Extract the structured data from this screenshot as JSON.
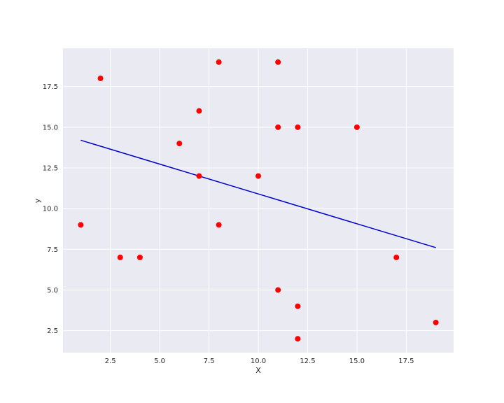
{
  "chart_data": {
    "type": "scatter",
    "title": "",
    "xlabel": "X",
    "ylabel": "y",
    "xlim": [
      0.1,
      19.9
    ],
    "ylim": [
      1.15,
      19.85
    ],
    "xticks": [
      2.5,
      5.0,
      7.5,
      10.0,
      12.5,
      15.0,
      17.5
    ],
    "xtick_labels": [
      "2.5",
      "5.0",
      "7.5",
      "10.0",
      "12.5",
      "15.0",
      "17.5"
    ],
    "yticks": [
      2.5,
      5.0,
      7.5,
      10.0,
      12.5,
      15.0,
      17.5
    ],
    "ytick_labels": [
      "2.5",
      "5.0",
      "7.5",
      "10.0",
      "12.5",
      "15.0",
      "17.5"
    ],
    "grid": true,
    "background": "#eaeaf2",
    "point_color": "#ff0000",
    "line_color": "#0000cc",
    "points": [
      {
        "x": 1,
        "y": 9
      },
      {
        "x": 2,
        "y": 18
      },
      {
        "x": 3,
        "y": 7
      },
      {
        "x": 4,
        "y": 7
      },
      {
        "x": 6,
        "y": 14
      },
      {
        "x": 7,
        "y": 16
      },
      {
        "x": 7,
        "y": 12
      },
      {
        "x": 8,
        "y": 19
      },
      {
        "x": 8,
        "y": 9
      },
      {
        "x": 10,
        "y": 12
      },
      {
        "x": 11,
        "y": 19
      },
      {
        "x": 11,
        "y": 15
      },
      {
        "x": 11,
        "y": 5
      },
      {
        "x": 12,
        "y": 15
      },
      {
        "x": 12,
        "y": 4
      },
      {
        "x": 12,
        "y": 2
      },
      {
        "x": 15,
        "y": 15
      },
      {
        "x": 17,
        "y": 7
      },
      {
        "x": 19,
        "y": 3
      }
    ],
    "fit_line": {
      "x": [
        1,
        19
      ],
      "y": [
        14.2,
        7.6
      ]
    }
  }
}
